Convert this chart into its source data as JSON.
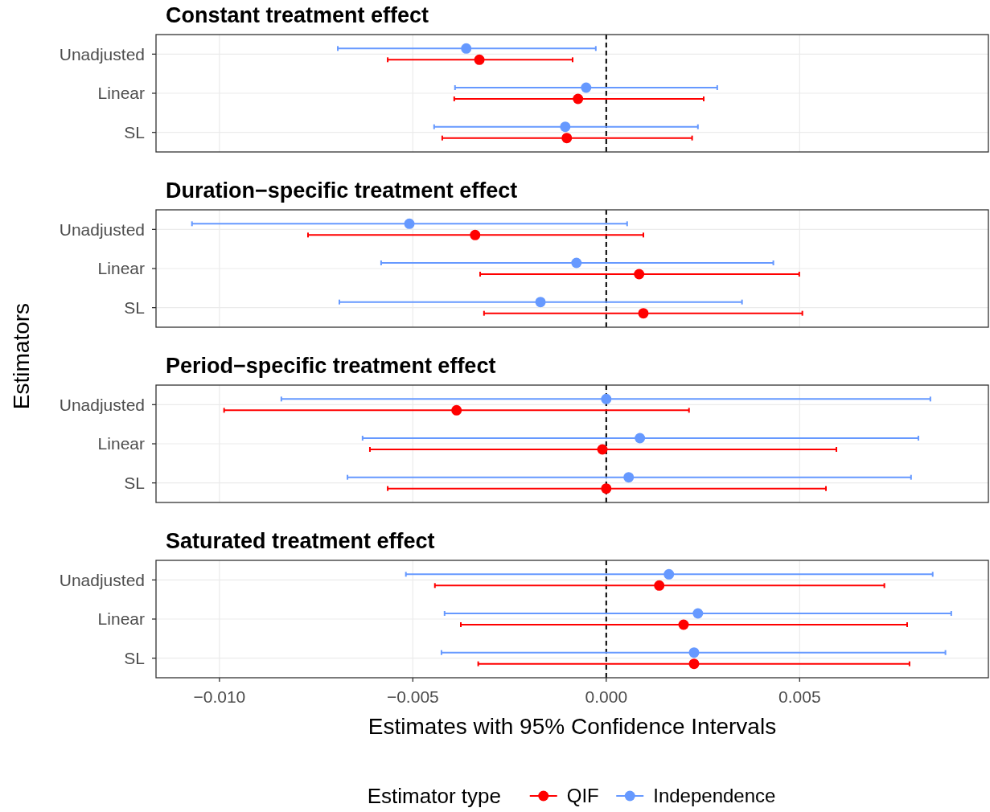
{
  "chart_data": [
    {
      "type": "scatter",
      "title": "Constant treatment effect",
      "orientation": "horizontal",
      "categories": [
        "Unadjusted",
        "Linear",
        "SL"
      ],
      "xlim": [
        -0.01164,
        0.00988
      ],
      "xticks": [
        {
          "value": -0.01,
          "label": null
        },
        {
          "value": -0.005,
          "label": null
        },
        {
          "value": 0,
          "label": null
        },
        {
          "value": 0.005,
          "label": null
        }
      ],
      "tick_labels": "y",
      "grid": true,
      "marker": "circle",
      "ref_lines": [
        {
          "axis": "x",
          "value": 0,
          "line_style": "dashed",
          "color": "#000000"
        }
      ],
      "series": [
        {
          "color": "#ff0000",
          "values": [
            -0.00328,
            -0.00073,
            -0.00102
          ],
          "errors": [
            [
              -0.00565,
              -0.00087
            ],
            [
              -0.00393,
              0.00252
            ],
            [
              -0.00424,
              0.00222
            ]
          ]
        },
        {
          "color": "#6699ff",
          "values": [
            -0.00362,
            -0.00052,
            -0.00106
          ],
          "errors": [
            [
              -0.00694,
              -0.00027
            ],
            [
              -0.00391,
              0.00287
            ],
            [
              -0.00445,
              0.00237
            ]
          ]
        }
      ]
    },
    {
      "type": "scatter",
      "title": "Duration−specific treatment effect",
      "orientation": "horizontal",
      "categories": [
        "Unadjusted",
        "Linear",
        "SL"
      ],
      "xlim": [
        -0.01164,
        0.00988
      ],
      "xticks": [
        {
          "value": -0.01,
          "label": null
        },
        {
          "value": -0.005,
          "label": null
        },
        {
          "value": 0,
          "label": null
        },
        {
          "value": 0.005,
          "label": null
        }
      ],
      "tick_labels": "y",
      "grid": true,
      "marker": "circle",
      "ref_lines": [
        {
          "axis": "x",
          "value": 0,
          "line_style": "dashed",
          "color": "#000000"
        }
      ],
      "series": [
        {
          "color": "#ff0000",
          "values": [
            -0.00339,
            0.00085,
            0.00096
          ],
          "errors": [
            [
              -0.00771,
              0.00096
            ],
            [
              -0.00326,
              0.00499
            ],
            [
              -0.00316,
              0.00507
            ]
          ]
        },
        {
          "color": "#6699ff",
          "values": [
            -0.00509,
            -0.00077,
            -0.0017
          ],
          "errors": [
            [
              -0.01071,
              0.00054
            ],
            [
              -0.00582,
              0.00432
            ],
            [
              -0.0069,
              0.00351
            ]
          ]
        }
      ]
    },
    {
      "type": "scatter",
      "title": "Period−specific treatment effect",
      "ylabel": "Estimators",
      "orientation": "horizontal",
      "categories": [
        "Unadjusted",
        "Linear",
        "SL"
      ],
      "xlim": [
        -0.01164,
        0.00988
      ],
      "xticks": [
        {
          "value": -0.01,
          "label": null
        },
        {
          "value": -0.005,
          "label": null
        },
        {
          "value": 0,
          "label": null
        },
        {
          "value": 0.005,
          "label": null
        }
      ],
      "tick_labels": "y",
      "grid": true,
      "marker": "circle",
      "ref_lines": [
        {
          "axis": "x",
          "value": 0,
          "line_style": "dashed",
          "color": "#000000"
        }
      ],
      "series": [
        {
          "color": "#ff0000",
          "values": [
            -0.00387,
            -0.0001,
            0
          ],
          "errors": [
            [
              -0.00988,
              0.00214
            ],
            [
              -0.00611,
              0.00595
            ],
            [
              -0.00565,
              0.00568
            ]
          ]
        },
        {
          "color": "#6699ff",
          "values": [
            0,
            0.00087,
            0.00058
          ],
          "errors": [
            [
              -0.0084,
              0.00838
            ],
            [
              -0.0063,
              0.00807
            ],
            [
              -0.00669,
              0.00788
            ]
          ]
        }
      ]
    },
    {
      "type": "scatter",
      "title": "Saturated treatment effect",
      "xlabel": "Estimates with 95% Confidence Intervals",
      "legend_title": "Estimator type",
      "orientation": "horizontal",
      "categories": [
        "Unadjusted",
        "Linear",
        "SL"
      ],
      "xlim": [
        -0.01164,
        0.00988
      ],
      "xticks": [
        {
          "value": -0.01,
          "label": "−0.010"
        },
        {
          "value": -0.005,
          "label": "−0.005"
        },
        {
          "value": 0,
          "label": "0.000"
        },
        {
          "value": 0.005,
          "label": "0.005"
        }
      ],
      "grid": true,
      "marker": "circle",
      "legend": "bottom",
      "ref_lines": [
        {
          "axis": "x",
          "value": 0,
          "line_style": "dashed",
          "color": "#000000"
        }
      ],
      "series": [
        {
          "name": "QIF",
          "color": "#ff0000",
          "values": [
            0.00137,
            0.002,
            0.00227
          ],
          "errors": [
            [
              -0.00443,
              0.00719
            ],
            [
              -0.00376,
              0.00778
            ],
            [
              -0.00331,
              0.00784
            ]
          ]
        },
        {
          "name": "Independence",
          "color": "#6699ff",
          "values": [
            0.00162,
            0.00237,
            0.00227
          ],
          "errors": [
            [
              -0.00518,
              0.00844
            ],
            [
              -0.00418,
              0.00892
            ],
            [
              -0.00426,
              0.00877
            ]
          ]
        }
      ]
    }
  ]
}
